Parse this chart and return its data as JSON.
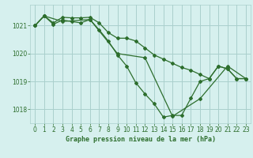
{
  "title": "Graphe pression niveau de la mer (hPa)",
  "bg_color": "#d6f0ee",
  "grid_color": "#aacfcc",
  "line_color": "#2d6e2d",
  "marker_color": "#2d6e2d",
  "ylim": [
    1017.5,
    1021.75
  ],
  "xlim": [
    -0.5,
    23.5
  ],
  "yticks": [
    1018,
    1019,
    1020,
    1021
  ],
  "xticks": [
    0,
    1,
    2,
    3,
    4,
    5,
    6,
    7,
    8,
    9,
    10,
    11,
    12,
    13,
    14,
    15,
    16,
    17,
    18,
    19,
    20,
    21,
    22,
    23
  ],
  "line1_x": [
    0,
    1,
    2,
    3,
    4,
    5,
    6,
    7,
    8,
    9,
    10,
    11,
    12,
    13,
    14,
    15,
    16,
    17,
    18,
    19,
    20,
    21,
    22,
    23
  ],
  "line1_y": [
    1021.0,
    1021.35,
    1021.1,
    1021.3,
    1021.28,
    1021.28,
    1021.3,
    1021.1,
    1020.75,
    1020.55,
    1020.55,
    1020.45,
    1020.2,
    1019.95,
    1019.8,
    1019.65,
    1019.5,
    1019.4,
    1019.25,
    1019.1,
    1019.55,
    1019.45,
    1019.1,
    1019.1
  ],
  "line2_x": [
    0,
    1,
    2,
    3,
    4,
    5,
    6,
    7,
    8,
    9,
    10,
    11,
    12,
    13,
    14,
    15,
    16,
    17,
    18,
    19,
    20,
    21,
    22,
    23
  ],
  "line2_y": [
    1021.0,
    1021.35,
    1021.05,
    1021.2,
    1021.15,
    1021.1,
    1021.22,
    1020.85,
    1020.45,
    1019.95,
    1019.55,
    1018.95,
    1018.55,
    1018.2,
    1017.72,
    1017.78,
    1017.78,
    1018.4,
    1019.0,
    1019.1,
    1019.55,
    1019.45,
    1019.1,
    1019.1
  ],
  "line3_x": [
    0,
    1,
    3,
    6,
    9,
    12,
    15,
    18,
    21,
    23
  ],
  "line3_y": [
    1021.0,
    1021.35,
    1021.15,
    1021.22,
    1020.0,
    1019.85,
    1017.75,
    1018.38,
    1019.55,
    1019.1
  ]
}
